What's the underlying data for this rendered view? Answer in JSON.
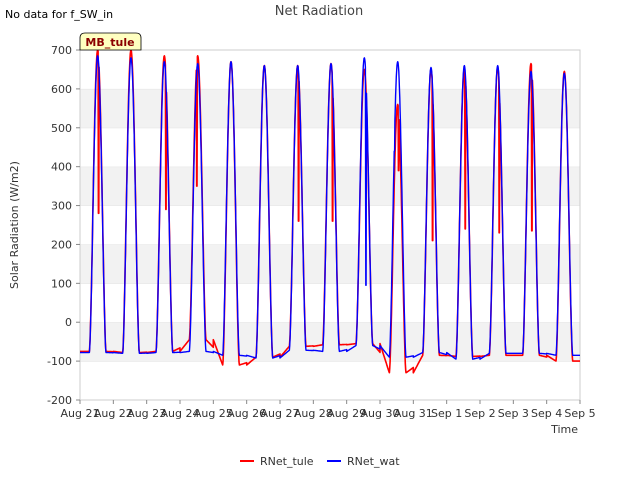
{
  "no_data_note": "No data for f_SW_in",
  "chart_data": {
    "type": "line",
    "title": "Net Radiation",
    "xlabel": "Time",
    "ylabel": "Solar Radiation (W/m2)",
    "site_label": "MB_tule",
    "ylim": [
      -200,
      700
    ],
    "yticks": [
      -200,
      -100,
      0,
      100,
      200,
      300,
      400,
      500,
      600,
      700
    ],
    "xlim": [
      "2024-08-21",
      "2024-09-05"
    ],
    "xtick_labels": [
      "Aug 21",
      "Aug 22",
      "Aug 23",
      "Aug 24",
      "Aug 25",
      "Aug 26",
      "Aug 27",
      "Aug 28",
      "Aug 29",
      "Aug 30",
      "Aug 31",
      "Sep 1",
      "Sep 2",
      "Sep 3",
      "Sep 4",
      "Sep 5"
    ],
    "grid": "horizontal bands",
    "legend_placement": "bottom-center",
    "series": [
      {
        "name": "RNet_tule",
        "color": "#ff0000",
        "points": [
          {
            "date": "2024-08-21",
            "night": -75,
            "peak": 700,
            "dip": [
              0.55,
              280
            ]
          },
          {
            "date": "2024-08-22",
            "night": -78,
            "peak": 700
          },
          {
            "date": "2024-08-23",
            "night": -75,
            "peak": 685,
            "dip": [
              0.6,
              290
            ]
          },
          {
            "date": "2024-08-24",
            "night": -45,
            "peak": 685,
            "dip": [
              0.45,
              350
            ]
          },
          {
            "date": "2024-08-25",
            "night": -110,
            "peak": 670
          },
          {
            "date": "2024-08-26",
            "night": -90,
            "peak": 660
          },
          {
            "date": "2024-08-27",
            "night": -62,
            "peak": 660,
            "dip": [
              0.55,
              260
            ]
          },
          {
            "date": "2024-08-28",
            "night": -58,
            "peak": 665,
            "dip": [
              0.6,
              260
            ]
          },
          {
            "date": "2024-08-29",
            "night": -55,
            "peak": 650
          },
          {
            "date": "2024-08-30",
            "night": -130,
            "peak": 560,
            "dip": [
              0.55,
              390
            ]
          },
          {
            "date": "2024-08-31",
            "night": -85,
            "peak": 650,
            "dip": [
              0.6,
              210
            ]
          },
          {
            "date": "2024-09-01",
            "night": -88,
            "peak": 650,
            "dip": [
              0.55,
              240
            ]
          },
          {
            "date": "2024-09-02",
            "night": -85,
            "peak": 655,
            "dip": [
              0.6,
              230
            ]
          },
          {
            "date": "2024-09-03",
            "night": -85,
            "peak": 665,
            "dip": [
              0.55,
              235
            ]
          },
          {
            "date": "2024-09-04",
            "night": -100,
            "peak": 645
          }
        ]
      },
      {
        "name": "RNet_wat",
        "color": "#0000ff",
        "points": [
          {
            "date": "2024-08-21",
            "night": -78,
            "peak": 685
          },
          {
            "date": "2024-08-22",
            "night": -80,
            "peak": 680
          },
          {
            "date": "2024-08-23",
            "night": -78,
            "peak": 670
          },
          {
            "date": "2024-08-24",
            "night": -75,
            "peak": 665
          },
          {
            "date": "2024-08-25",
            "night": -85,
            "peak": 670
          },
          {
            "date": "2024-08-26",
            "night": -92,
            "peak": 660
          },
          {
            "date": "2024-08-27",
            "night": -72,
            "peak": 660
          },
          {
            "date": "2024-08-28",
            "night": -75,
            "peak": 665
          },
          {
            "date": "2024-08-29",
            "night": -60,
            "peak": 680,
            "dip": [
              0.6,
              95
            ]
          },
          {
            "date": "2024-08-30",
            "night": -90,
            "peak": 670,
            "dip": [
              0.3,
              440
            ]
          },
          {
            "date": "2024-08-31",
            "night": -78,
            "peak": 655
          },
          {
            "date": "2024-09-01",
            "night": -95,
            "peak": 660
          },
          {
            "date": "2024-09-02",
            "night": -80,
            "peak": 660
          },
          {
            "date": "2024-09-03",
            "night": -80,
            "peak": 645
          },
          {
            "date": "2024-09-04",
            "night": -85,
            "peak": 640
          }
        ]
      }
    ]
  }
}
